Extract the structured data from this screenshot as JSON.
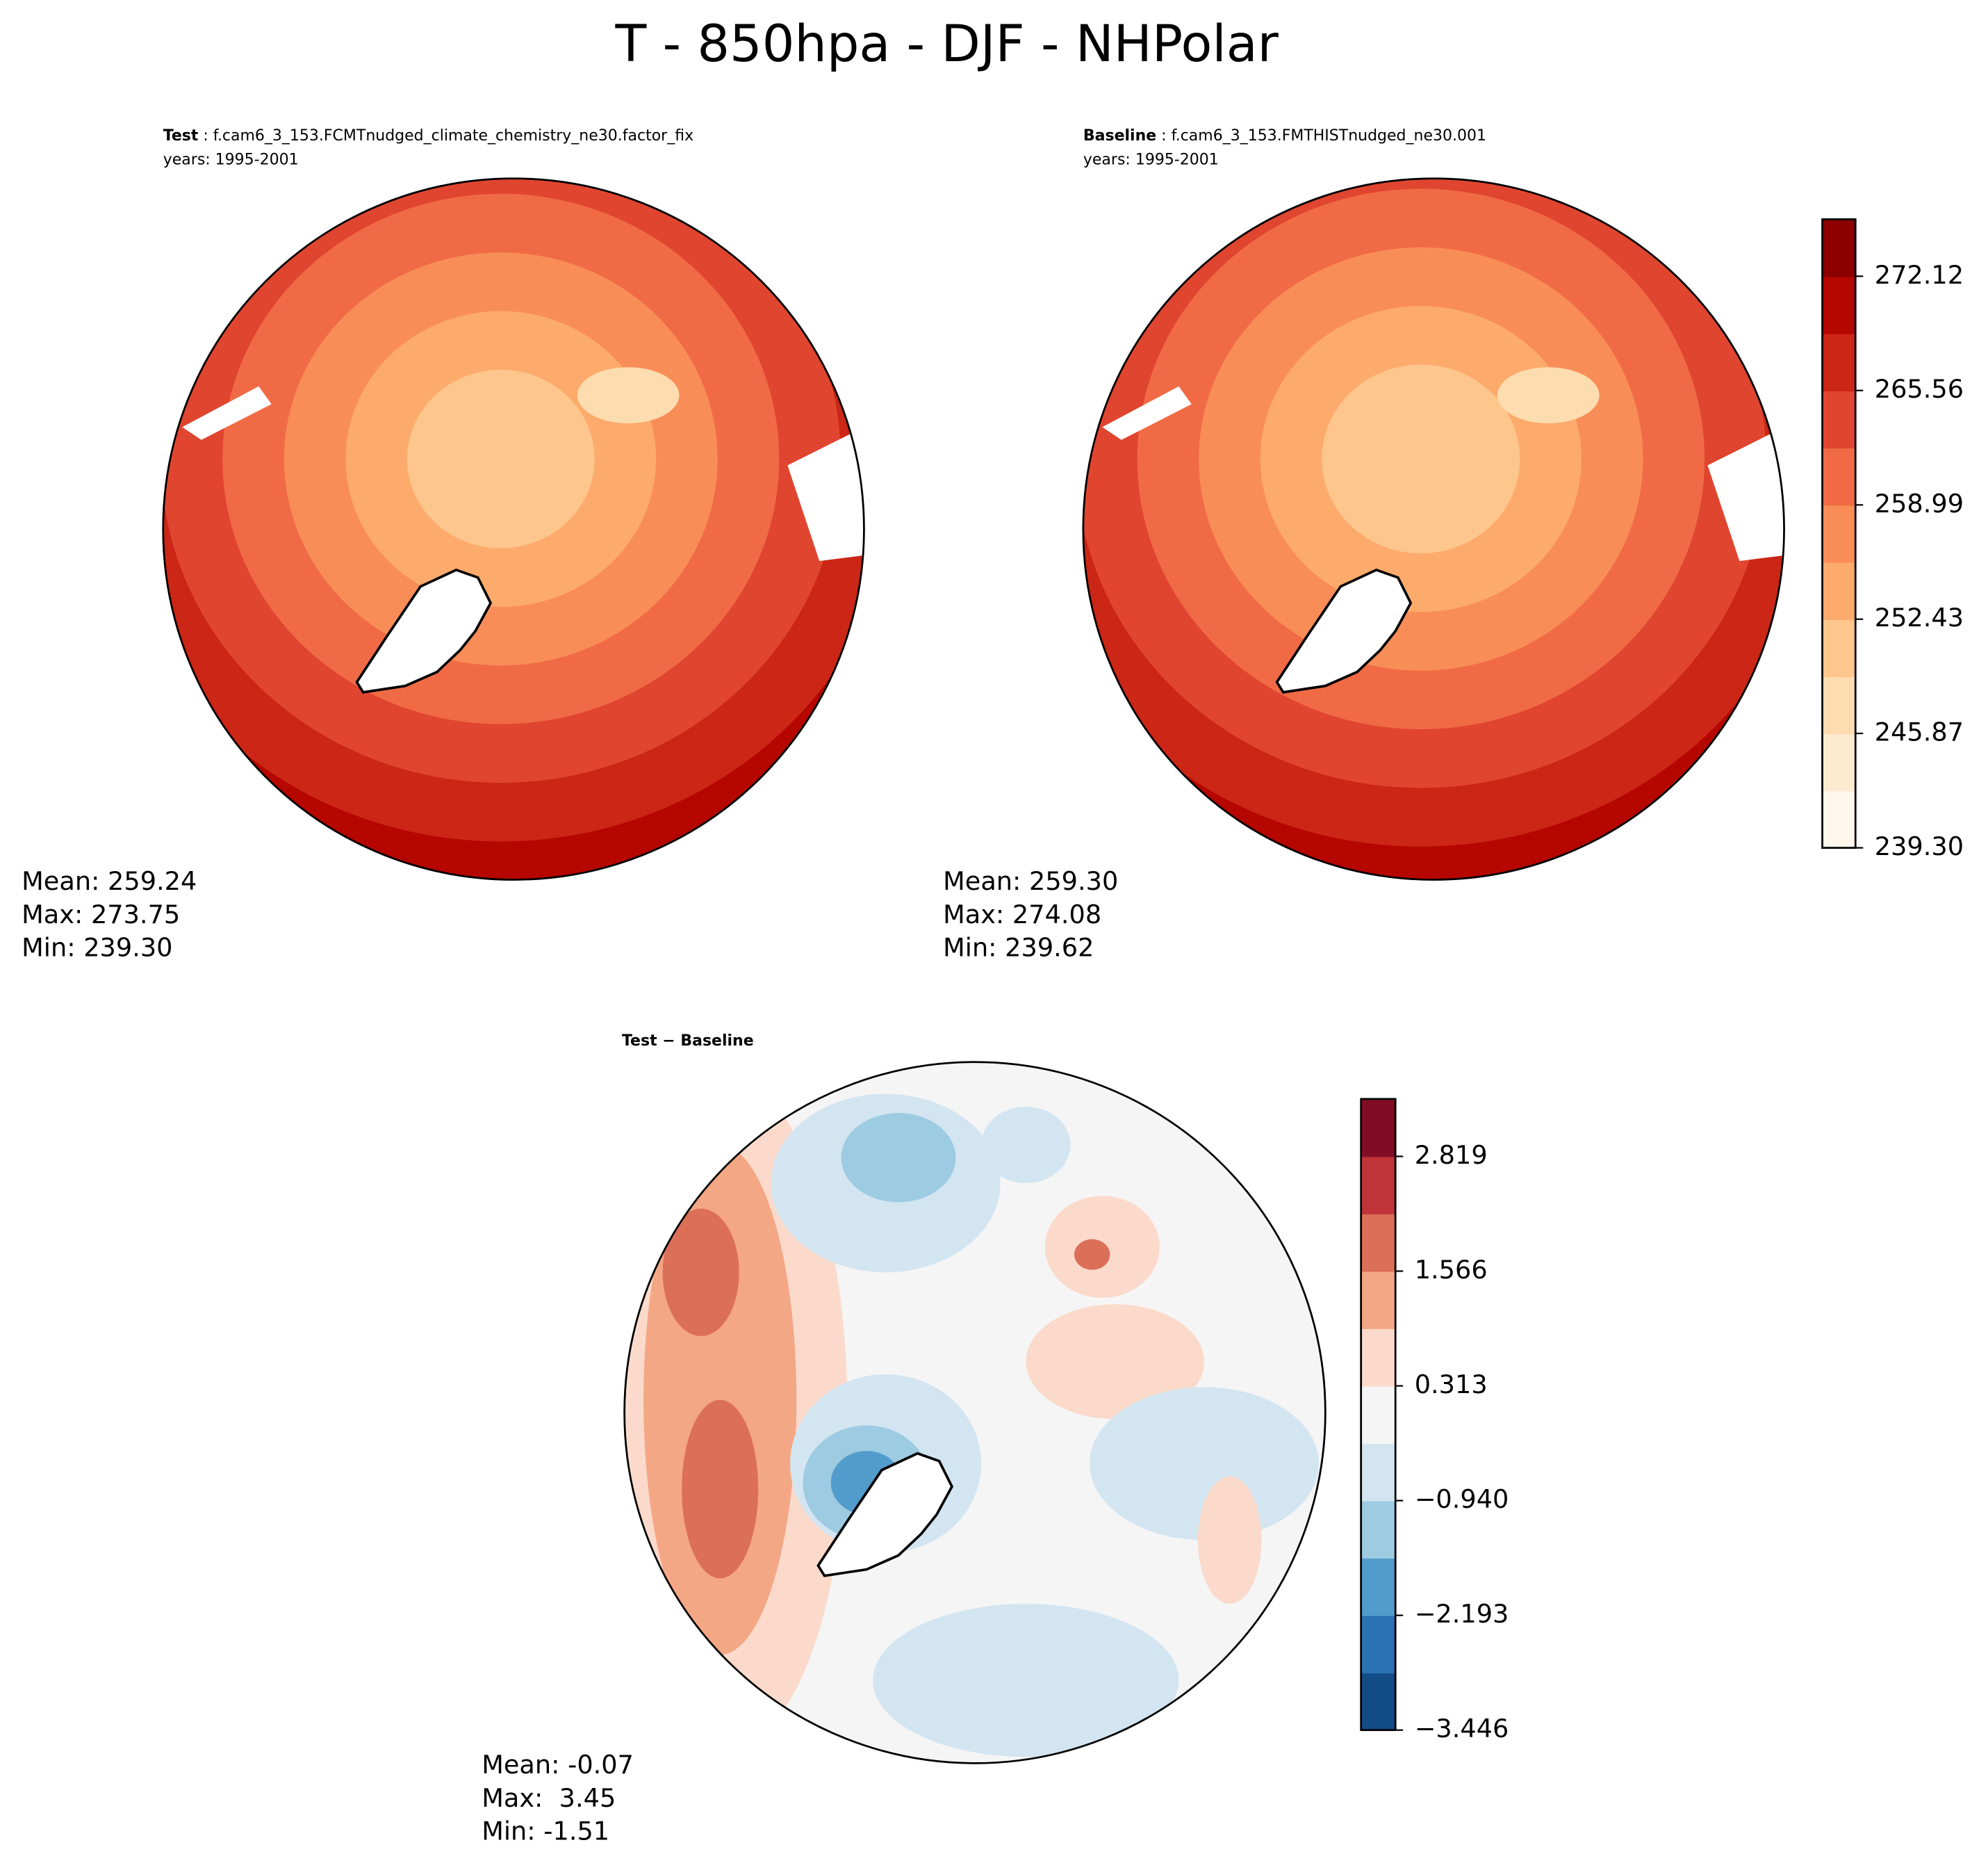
{
  "title": "T - 850hpa - DJF - NHPolar",
  "panels": [
    {
      "label_bold": "Test",
      "label": " : f.cam6_3_153.FCMTnudged_climate_chemistry_ne30.factor_fix",
      "years": "years: 1995-2001",
      "stats": [
        "Mean: 259.24",
        "Max: 273.75",
        "Min: 239.30"
      ]
    },
    {
      "label_bold": "Baseline",
      "label": " : f.cam6_3_153.FMTHISTnudged_ne30.001",
      "years": "years: 1995-2001",
      "stats": [
        "Mean: 259.30",
        "Max: 274.08",
        "Min: 239.62"
      ]
    },
    {
      "label_bold": "Test − Baseline",
      "stats": [
        "Mean: -0.07",
        "Max:  3.45",
        "Min: -1.51"
      ]
    }
  ],
  "colorbars": [
    {
      "clim": [
        239.3,
        275.39
      ],
      "colors": [
        "#fff7ec",
        "#feebcf",
        "#fddcaf",
        "#fdc68d",
        "#fdab6c",
        "#f98d58",
        "#f06b45",
        "#e04530",
        "#cb2616",
        "#b50600",
        "#8c0000"
      ],
      "ticks": [
        {
          "value": 239.3,
          "label": "239.30"
        },
        {
          "value": 245.87,
          "label": "245.87"
        },
        {
          "value": 252.43,
          "label": "252.43"
        },
        {
          "value": 258.99,
          "label": "258.99"
        },
        {
          "value": 265.56,
          "label": "265.56"
        },
        {
          "value": 272.12,
          "label": "272.12"
        }
      ]
    },
    {
      "clim": [
        -3.446,
        3.446
      ],
      "colors": [
        "#134b87",
        "#2b72b4",
        "#519ccb",
        "#9dcbe2",
        "#d3e5f1",
        "#f5f5f5",
        "#fbdacb",
        "#f4a785",
        "#dc6f58",
        "#bf3339",
        "#810d25"
      ],
      "ticks": [
        {
          "value": -3.446,
          "label": "−3.446"
        },
        {
          "value": -2.193,
          "label": "−2.193"
        },
        {
          "value": -0.94,
          "label": "−0.940"
        },
        {
          "value": 0.313,
          "label": "0.313"
        },
        {
          "value": 1.566,
          "label": "1.566"
        },
        {
          "value": 2.819,
          "label": "2.819"
        }
      ]
    }
  ]
}
